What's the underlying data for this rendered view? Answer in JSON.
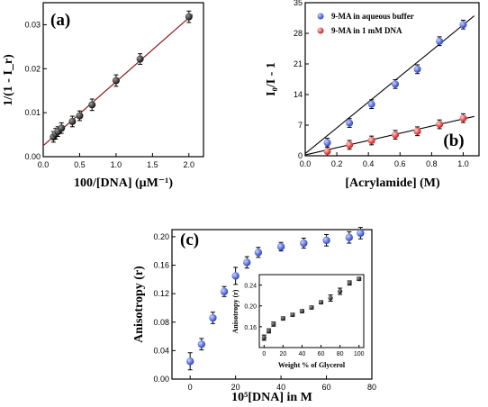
{
  "chart_data": [
    {
      "id": "a",
      "type": "scatter",
      "panel_label": "(a)",
      "xlabel": "100/[DNA]  (μM⁻¹)",
      "ylabel": "1/(1 - I_r)",
      "xlim": [
        0.0,
        2.2
      ],
      "ylim": [
        0.0,
        0.035
      ],
      "xticks": [
        "0.0",
        "0.5",
        "1.0",
        "1.5",
        "2.0"
      ],
      "xtick_values": [
        0.0,
        0.5,
        1.0,
        1.5,
        2.0
      ],
      "yticks": [
        "0.00",
        "0.01",
        "0.02",
        "0.03"
      ],
      "ytick_values": [
        0.0,
        0.01,
        0.02,
        0.03
      ],
      "series": [
        {
          "color": "#1a1a1a",
          "x": [
            0.14,
            0.17,
            0.2,
            0.25,
            0.4,
            0.5,
            0.67,
            1.0,
            1.33,
            2.0
          ],
          "y": [
            0.0045,
            0.0052,
            0.0057,
            0.0065,
            0.008,
            0.0093,
            0.0118,
            0.0173,
            0.0222,
            0.0318
          ],
          "err": [
            0.0012,
            0.0012,
            0.0011,
            0.0012,
            0.0012,
            0.0011,
            0.0013,
            0.0013,
            0.0012,
            0.0013
          ]
        }
      ],
      "fit": {
        "color": "#8b1a1a",
        "x": [
          0.0,
          2.05
        ],
        "y": [
          0.0025,
          0.0323
        ]
      }
    },
    {
      "id": "b",
      "type": "scatter",
      "panel_label": "(b)",
      "xlabel": "[Acrylamide] (M)",
      "ylabel": "I₀/I - 1",
      "xlim": [
        0.0,
        1.1
      ],
      "ylim": [
        0,
        35
      ],
      "xticks": [
        "0.0",
        "0.2",
        "0.4",
        "0.6",
        "0.8",
        "1.0"
      ],
      "xtick_values": [
        0.0,
        0.2,
        0.4,
        0.6,
        0.8,
        1.0
      ],
      "yticks": [
        "0",
        "7",
        "14",
        "21",
        "28",
        "35"
      ],
      "ytick_values": [
        0,
        7,
        14,
        21,
        28,
        35
      ],
      "legend_position": "top-left",
      "series": [
        {
          "name": "9-MA in aqueous buffer",
          "color": "#3b5bdb",
          "x": [
            0.14,
            0.28,
            0.42,
            0.57,
            0.71,
            0.85,
            1.0
          ],
          "y": [
            3.0,
            7.5,
            11.8,
            16.4,
            19.8,
            26.2,
            30.0
          ],
          "err": [
            1.0,
            1.0,
            1.0,
            1.0,
            1.0,
            1.0,
            1.0
          ],
          "fit": [
            [
              0.0,
              0.5
            ],
            [
              1.07,
              32.0
            ]
          ]
        },
        {
          "name": "9-MA in 1 mM DNA",
          "color": "#e03030",
          "x": [
            0.14,
            0.28,
            0.42,
            0.57,
            0.71,
            0.85,
            1.0
          ],
          "y": [
            1.0,
            2.5,
            3.5,
            4.8,
            5.6,
            7.2,
            8.6
          ],
          "err": [
            1.0,
            1.0,
            1.0,
            1.0,
            1.0,
            1.0,
            1.0
          ],
          "fit": [
            [
              0.0,
              0.2
            ],
            [
              1.07,
              9.0
            ]
          ]
        }
      ]
    },
    {
      "id": "c",
      "type": "scatter",
      "panel_label": "(c)",
      "xlabel": "10⁵[DNA] in M",
      "ylabel": "Anisotropy (r)",
      "xlim": [
        -8,
        80
      ],
      "ylim": [
        0.0,
        0.21
      ],
      "xticks": [
        "0",
        "20",
        "40",
        "60",
        "80"
      ],
      "xtick_values": [
        0,
        20,
        40,
        60,
        80
      ],
      "yticks": [
        "0.00",
        "0.04",
        "0.08",
        "0.12",
        "0.16",
        "0.20"
      ],
      "ytick_values": [
        0.0,
        0.04,
        0.08,
        0.12,
        0.16,
        0.2
      ],
      "series": [
        {
          "color": "#3b5bdb",
          "x": [
            0,
            5,
            10,
            15,
            20,
            25,
            30,
            40,
            50,
            60,
            70,
            75
          ],
          "y": [
            0.025,
            0.049,
            0.086,
            0.123,
            0.145,
            0.164,
            0.178,
            0.186,
            0.191,
            0.195,
            0.199,
            0.205
          ],
          "err": [
            0.012,
            0.008,
            0.008,
            0.007,
            0.012,
            0.008,
            0.007,
            0.006,
            0.007,
            0.008,
            0.008,
            0.008
          ]
        }
      ],
      "inset": {
        "xlabel": "Weight % of Glycerol",
        "ylabel": "Anisotropy (r)",
        "xlim": [
          -5,
          105
        ],
        "ylim": [
          0.12,
          0.26
        ],
        "xticks": [
          "0",
          "20",
          "40",
          "60",
          "80",
          "100"
        ],
        "xtick_values": [
          0,
          20,
          40,
          60,
          80,
          100
        ],
        "yticks": [
          "0.16",
          "0.20",
          "0.24"
        ],
        "ytick_values": [
          0.16,
          0.2,
          0.24
        ],
        "x": [
          0,
          5,
          10,
          20,
          30,
          40,
          50,
          60,
          70,
          80,
          90,
          100
        ],
        "y": [
          0.139,
          0.152,
          0.165,
          0.176,
          0.183,
          0.19,
          0.197,
          0.207,
          0.215,
          0.228,
          0.244,
          0.252
        ],
        "err": [
          0.005,
          0.004,
          0.004,
          0.003,
          0.003,
          0.003,
          0.003,
          0.003,
          0.006,
          0.006,
          0.004,
          0.003
        ],
        "color": "#111111"
      }
    }
  ]
}
